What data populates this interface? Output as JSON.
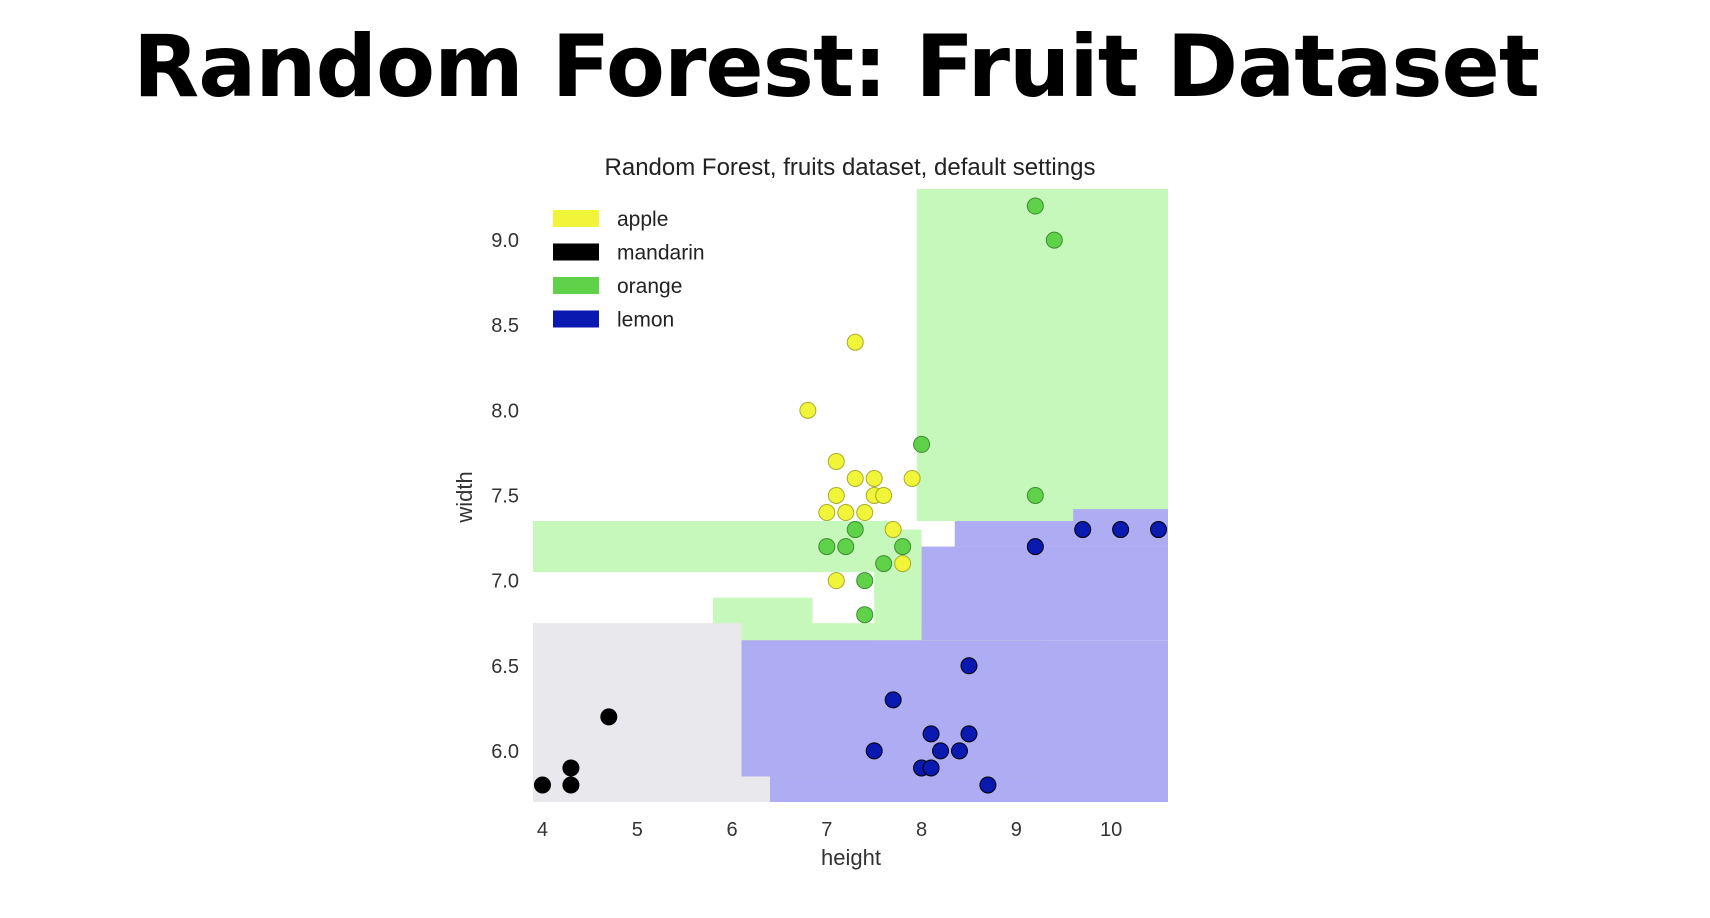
{
  "slide": {
    "title": "Random Forest:  Fruit Dataset"
  },
  "colors": {
    "apple": "#f0f53a",
    "mandarin": "#000000",
    "orange": "#5fd24a",
    "lemon": "#0a1ab0",
    "region_apple": "#f7fbaa",
    "region_mandarin": "#e9e8ec",
    "region_orange": "#c5f8ba",
    "region_lemon": "#aeacf2"
  },
  "chart_data": {
    "type": "scatter",
    "title": "Random Forest, fruits dataset, default settings",
    "xlabel": "height",
    "ylabel": "width",
    "xlim": [
      3.9,
      10.6
    ],
    "ylim": [
      5.7,
      9.3
    ],
    "xticks": [
      "4",
      "5",
      "6",
      "7",
      "8",
      "9",
      "10"
    ],
    "yticks": [
      "6.0",
      "6.5",
      "7.0",
      "7.5",
      "8.0",
      "8.5",
      "9.0"
    ],
    "grid": false,
    "legend_position": "top-left",
    "legend": [
      "apple",
      "mandarin",
      "orange",
      "lemon"
    ],
    "series": [
      {
        "name": "apple",
        "color_key": "apple",
        "points": [
          [
            6.8,
            8.0
          ],
          [
            7.3,
            8.4
          ],
          [
            7.1,
            7.7
          ],
          [
            7.3,
            7.6
          ],
          [
            7.5,
            7.6
          ],
          [
            7.9,
            7.6
          ],
          [
            7.1,
            7.5
          ],
          [
            7.5,
            7.5
          ],
          [
            7.6,
            7.5
          ],
          [
            7.0,
            7.4
          ],
          [
            7.2,
            7.4
          ],
          [
            7.4,
            7.4
          ],
          [
            7.7,
            7.3
          ],
          [
            7.8,
            7.1
          ],
          [
            7.1,
            7.0
          ]
        ]
      },
      {
        "name": "mandarin",
        "color_key": "mandarin",
        "points": [
          [
            4.7,
            6.2
          ],
          [
            4.3,
            5.9
          ],
          [
            4.0,
            5.8
          ],
          [
            4.3,
            5.8
          ]
        ]
      },
      {
        "name": "orange",
        "color_key": "orange",
        "points": [
          [
            9.2,
            9.2
          ],
          [
            9.4,
            9.0
          ],
          [
            8.0,
            7.8
          ],
          [
            9.2,
            7.5
          ],
          [
            7.3,
            7.3
          ],
          [
            7.0,
            7.2
          ],
          [
            7.2,
            7.2
          ],
          [
            7.8,
            7.2
          ],
          [
            7.6,
            7.1
          ],
          [
            7.4,
            7.0
          ],
          [
            7.4,
            6.8
          ]
        ]
      },
      {
        "name": "lemon",
        "color_key": "lemon",
        "points": [
          [
            9.7,
            7.3
          ],
          [
            10.1,
            7.3
          ],
          [
            10.5,
            7.3
          ],
          [
            9.2,
            7.2
          ],
          [
            8.5,
            6.5
          ],
          [
            7.7,
            6.3
          ],
          [
            8.1,
            6.1
          ],
          [
            8.5,
            6.1
          ],
          [
            7.5,
            6.0
          ],
          [
            8.2,
            6.0
          ],
          [
            8.4,
            6.0
          ],
          [
            8.0,
            5.9
          ],
          [
            8.1,
            5.9
          ],
          [
            8.7,
            5.8
          ]
        ]
      }
    ],
    "decision_regions": [
      {
        "class": "apple",
        "rect": [
          3.9,
          9.3,
          6.75,
          5.7
        ]
      },
      {
        "class": "orange",
        "rect": [
          7.95,
          10.6,
          9.3,
          7.35
        ]
      },
      {
        "class": "orange",
        "rect": [
          3.9,
          7.7,
          7.35,
          7.05
        ]
      },
      {
        "class": "orange",
        "rect": [
          5.8,
          6.85,
          6.9,
          6.65
        ]
      },
      {
        "class": "orange",
        "rect": [
          7.5,
          8.0,
          7.3,
          6.65
        ]
      },
      {
        "class": "orange",
        "rect": [
          6.85,
          8.0,
          6.75,
          6.65
        ]
      },
      {
        "class": "mandarin",
        "rect": [
          3.9,
          6.1,
          6.75,
          5.7
        ]
      },
      {
        "class": "mandarin",
        "rect": [
          6.1,
          6.4,
          5.85,
          5.7
        ]
      },
      {
        "class": "lemon",
        "rect": [
          6.1,
          10.6,
          6.65,
          5.85
        ]
      },
      {
        "class": "lemon",
        "rect": [
          6.4,
          10.6,
          5.85,
          5.7
        ]
      },
      {
        "class": "lemon",
        "rect": [
          8.0,
          10.6,
          7.2,
          6.65
        ]
      },
      {
        "class": "lemon",
        "rect": [
          8.35,
          10.6,
          7.35,
          7.2
        ]
      },
      {
        "class": "lemon",
        "rect": [
          9.6,
          10.6,
          7.42,
          7.35
        ]
      }
    ]
  }
}
